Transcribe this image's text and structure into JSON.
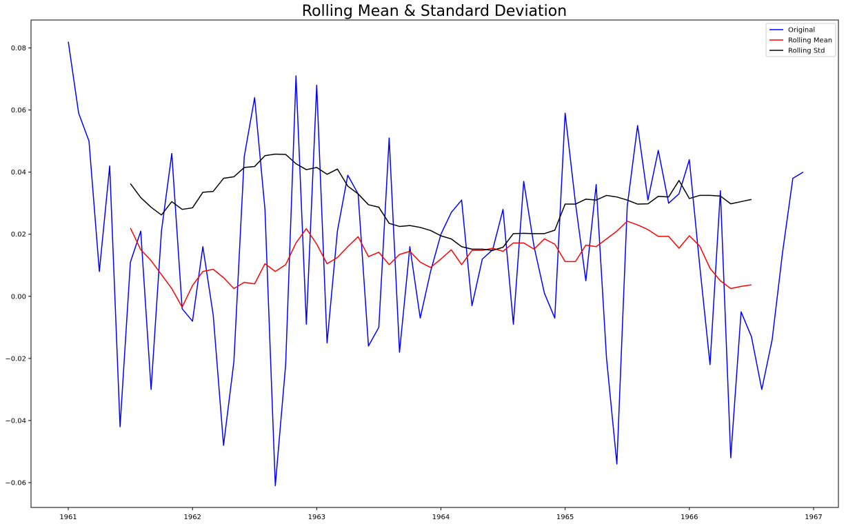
{
  "chart_data": {
    "type": "line",
    "title": "Rolling Mean & Standard Deviation",
    "xlabel": "",
    "ylabel": "",
    "xlim": [
      1960.7,
      1967.2
    ],
    "ylim": [
      -0.068,
      0.089
    ],
    "xticks": [
      1961,
      1962,
      1963,
      1964,
      1965,
      1966,
      1967
    ],
    "xtick_labels": [
      "1961",
      "1962",
      "1963",
      "1964",
      "1965",
      "1966",
      "1967"
    ],
    "yticks": [
      -0.06,
      -0.04,
      -0.02,
      0.0,
      0.02,
      0.04,
      0.06,
      0.08
    ],
    "ytick_labels": [
      "−0.06",
      "−0.04",
      "−0.02",
      "0.00",
      "0.02",
      "0.04",
      "0.06",
      "0.08"
    ],
    "grid": false,
    "legend_position": "top-right",
    "series": [
      {
        "name": "Original",
        "color": "#0000ff",
        "x_start": 1961.0,
        "x_step": 0.08333,
        "values": [
          0.082,
          0.059,
          0.05,
          0.008,
          0.042,
          -0.042,
          0.011,
          0.021,
          -0.03,
          0.021,
          0.046,
          -0.004,
          -0.008,
          0.016,
          -0.006,
          -0.048,
          -0.021,
          0.045,
          0.064,
          0.028,
          -0.061,
          -0.022,
          0.071,
          -0.009,
          0.068,
          -0.015,
          0.021,
          0.039,
          0.033,
          -0.016,
          -0.01,
          0.051,
          -0.018,
          0.016,
          -0.007,
          0.008,
          0.02,
          0.027,
          0.031,
          -0.003,
          0.012,
          0.015,
          0.028,
          -0.009,
          0.037,
          0.016,
          0.001,
          -0.007,
          0.059,
          0.03,
          0.005,
          0.036,
          -0.02,
          -0.054,
          0.029,
          0.055,
          0.031,
          0.047,
          0.03,
          0.033,
          0.044,
          0.01,
          -0.022,
          0.034,
          -0.052,
          -0.005,
          -0.013,
          -0.03,
          -0.014,
          0.014,
          0.038,
          0.04
        ]
      },
      {
        "name": "Rolling Mean",
        "color": "#ff0000",
        "x_start": 1961.5,
        "x_step": 0.08333,
        "values": [
          0.022,
          0.015,
          0.0115,
          0.007,
          0.0025,
          -0.0035,
          0.0035,
          0.008,
          0.0087,
          0.006,
          0.0025,
          0.0045,
          0.004,
          0.0105,
          0.008,
          0.0102,
          0.0172,
          0.0218,
          0.0168,
          0.0105,
          0.0125,
          0.016,
          0.0192,
          0.0128,
          0.0142,
          0.0102,
          0.0135,
          0.0145,
          0.011,
          0.0093,
          0.012,
          0.015,
          0.0102,
          0.0148,
          0.0148,
          0.0155,
          0.0145,
          0.0172,
          0.0172,
          0.0152,
          0.0185,
          0.0168,
          0.0112,
          0.0112,
          0.0165,
          0.016,
          0.0185,
          0.021,
          0.0242,
          0.023,
          0.0215,
          0.0193,
          0.0193,
          0.0155,
          0.0195,
          0.0162,
          0.009,
          0.005,
          0.0025,
          0.0032,
          0.0037
        ]
      },
      {
        "name": "Rolling Std",
        "color": "#000000",
        "x_start": 1961.5,
        "x_step": 0.08333,
        "values": [
          0.0363,
          0.0318,
          0.0287,
          0.0262,
          0.0305,
          0.028,
          0.0285,
          0.0335,
          0.0338,
          0.038,
          0.0385,
          0.0415,
          0.0418,
          0.0453,
          0.0458,
          0.0457,
          0.0427,
          0.0408,
          0.0415,
          0.0393,
          0.041,
          0.0355,
          0.033,
          0.0295,
          0.0287,
          0.0235,
          0.0225,
          0.0228,
          0.0222,
          0.0212,
          0.0195,
          0.0185,
          0.016,
          0.0152,
          0.0152,
          0.0148,
          0.0158,
          0.0202,
          0.0203,
          0.0202,
          0.0202,
          0.0213,
          0.0297,
          0.0297,
          0.0313,
          0.031,
          0.0325,
          0.032,
          0.031,
          0.0297,
          0.0298,
          0.0322,
          0.032,
          0.0373,
          0.0315,
          0.0325,
          0.0325,
          0.0323,
          0.0298,
          0.0305,
          0.0312
        ]
      }
    ]
  }
}
